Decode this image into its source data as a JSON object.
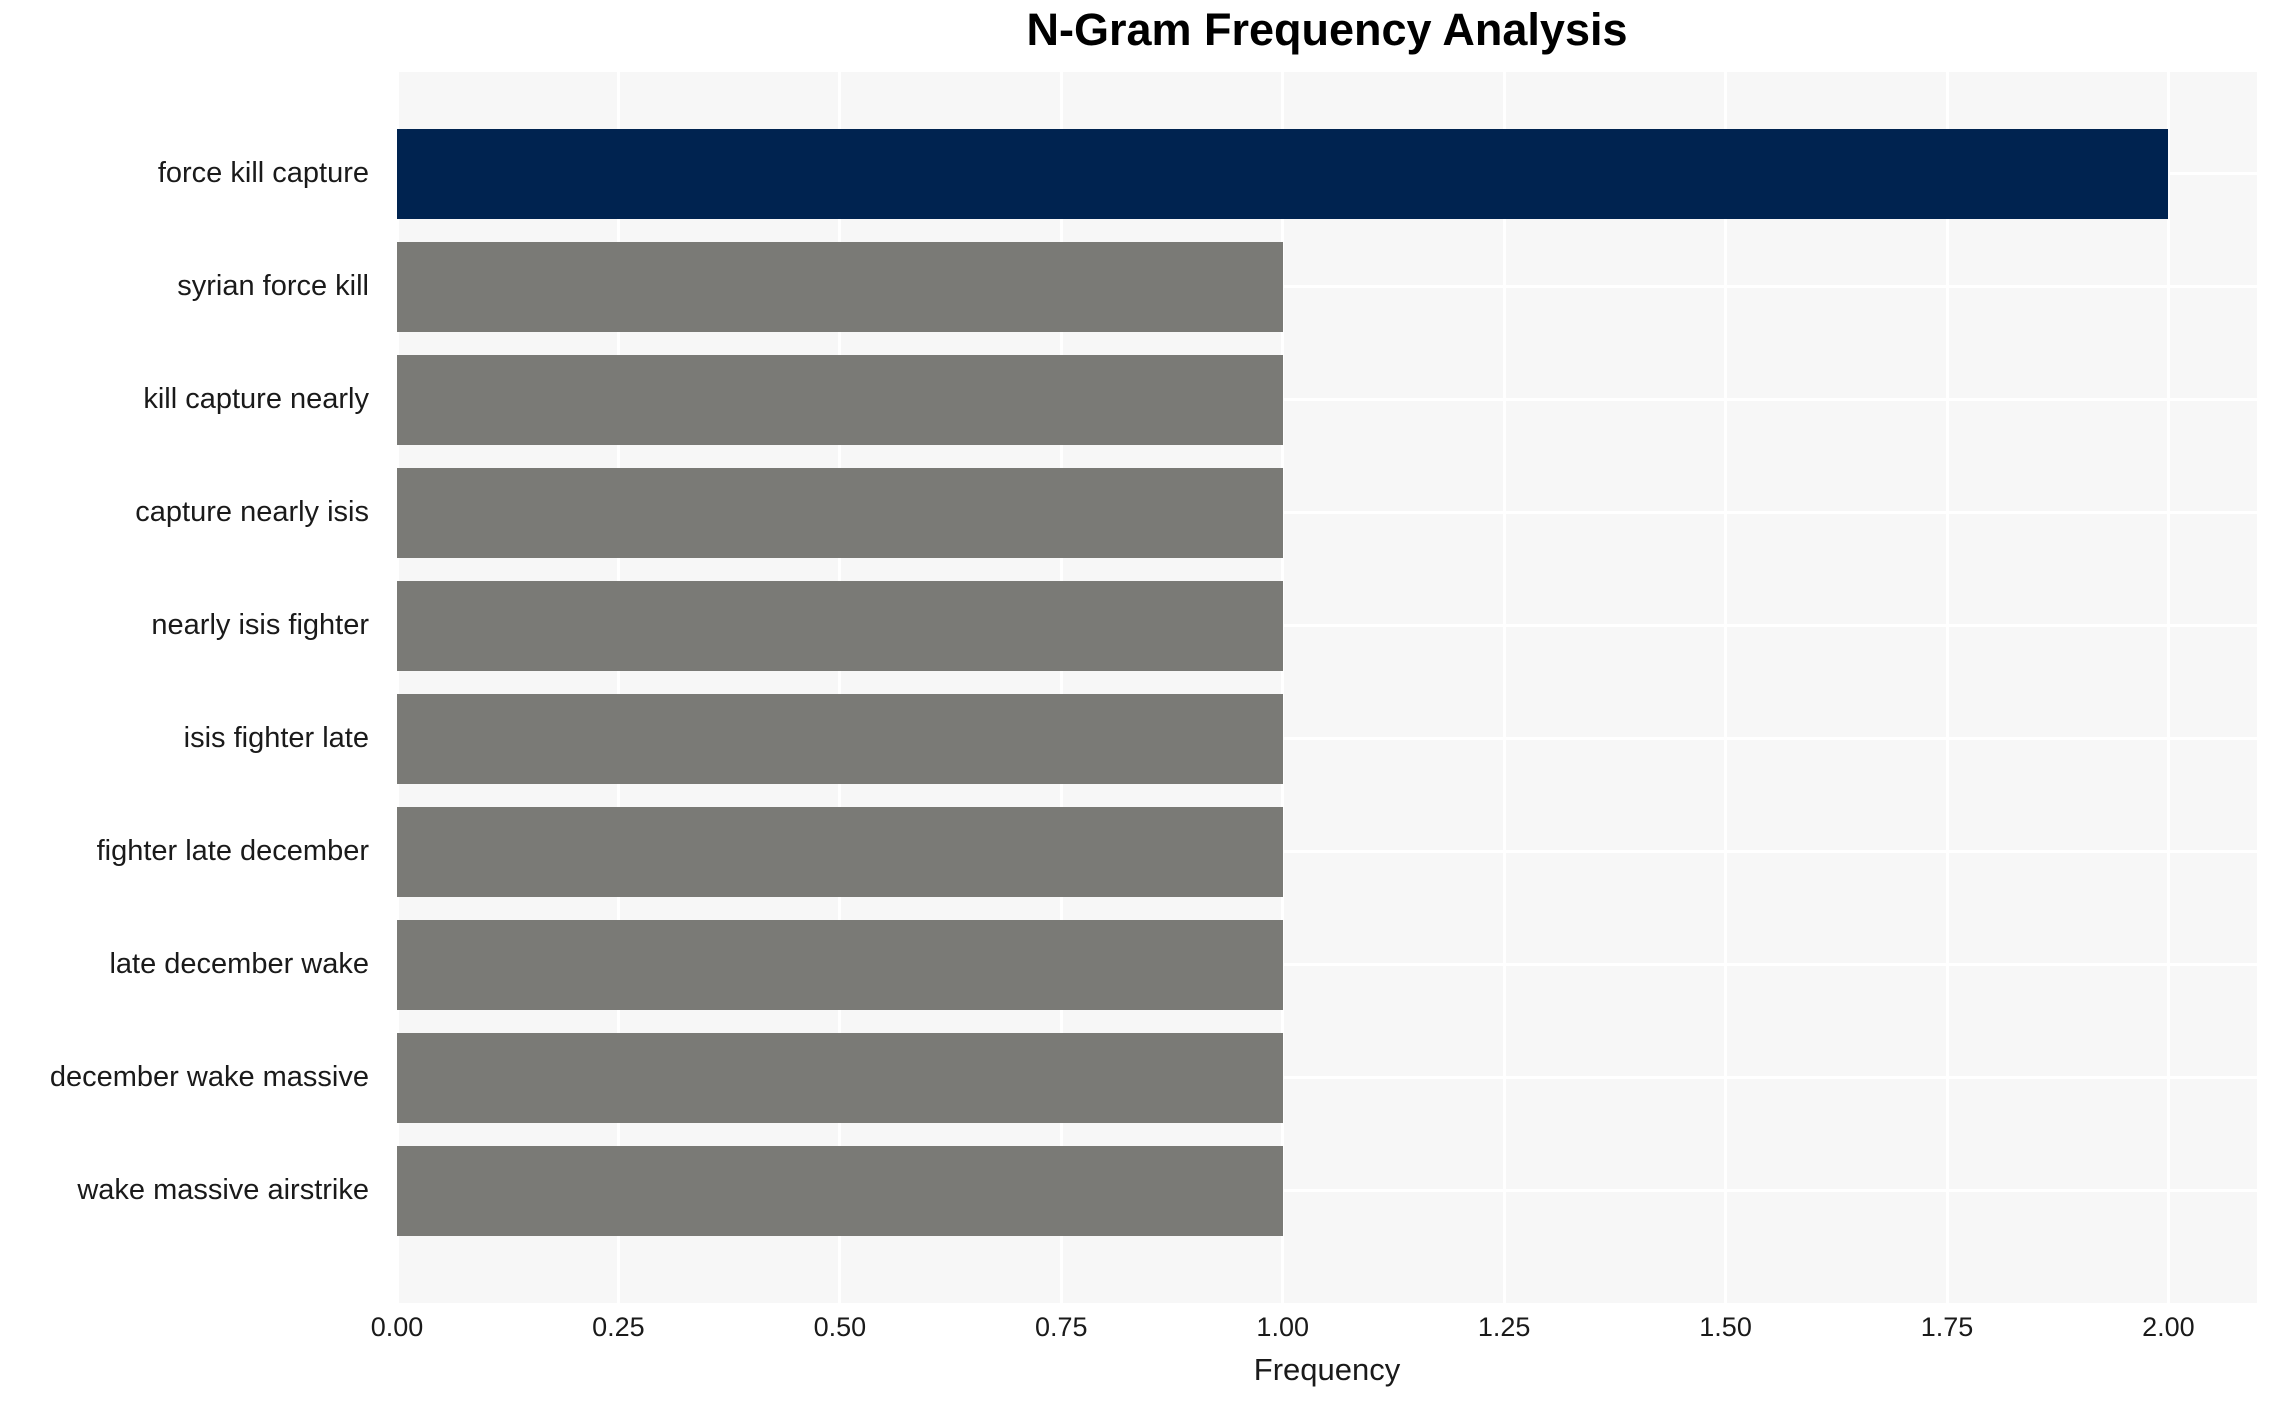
{
  "title": "N-Gram Frequency Analysis",
  "xlabel": "Frequency",
  "colors": {
    "highlight_bar": "#002350",
    "default_bar": "#7a7a76",
    "plot_background": "#f7f7f7",
    "gridline": "#ffffff",
    "title_text": "#000000",
    "tick_text": "#1a1a1a"
  },
  "chart_data": {
    "type": "bar",
    "orientation": "horizontal",
    "title": "N-Gram Frequency Analysis",
    "xlabel": "Frequency",
    "ylabel": "",
    "categories": [
      "force kill capture",
      "syrian force kill",
      "kill capture nearly",
      "capture nearly isis",
      "nearly isis fighter",
      "isis fighter late",
      "fighter late december",
      "late december wake",
      "december wake massive",
      "wake massive airstrike"
    ],
    "values": [
      2,
      1,
      1,
      1,
      1,
      1,
      1,
      1,
      1,
      1
    ],
    "highlight_index": 0,
    "xlim": [
      0,
      2.1
    ],
    "x_ticks": [
      "0.00",
      "0.25",
      "0.50",
      "0.75",
      "1.00",
      "1.25",
      "1.50",
      "1.75",
      "2.00"
    ],
    "grid": "on",
    "legend": "none"
  }
}
